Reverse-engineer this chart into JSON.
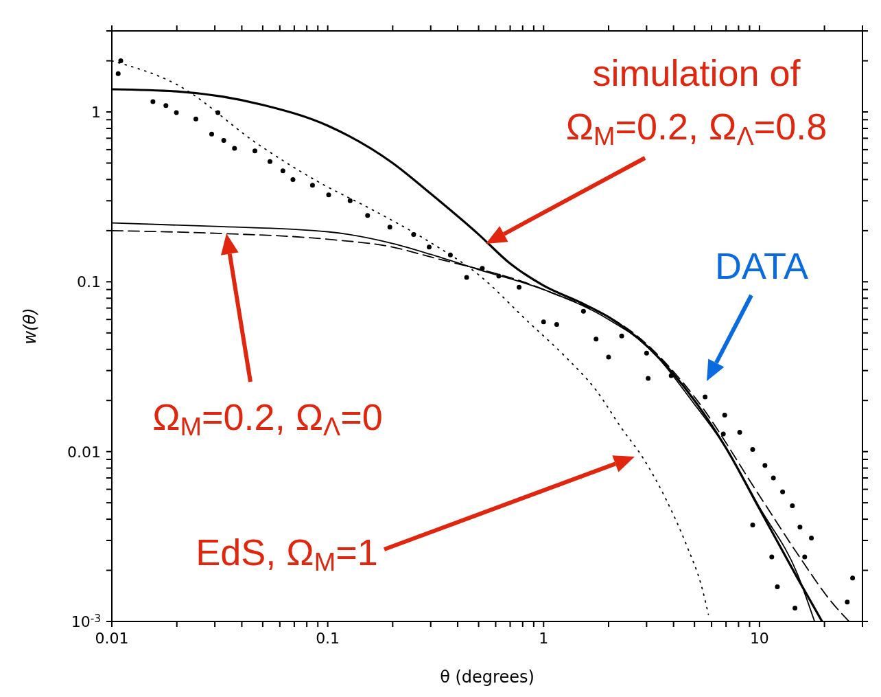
{
  "chart_data": {
    "type": "line",
    "xlabel": "θ (degrees)",
    "ylabel": "w(θ)",
    "log": "xy",
    "xlim": [
      0.01,
      30
    ],
    "ylim": [
      0.001,
      3
    ],
    "xticks": [
      {
        "value": 0.01,
        "label": "0.01"
      },
      {
        "value": 0.02,
        "label": null
      },
      {
        "value": 0.03,
        "label": null
      },
      {
        "value": 0.04,
        "label": null
      },
      {
        "value": 0.05,
        "label": null
      },
      {
        "value": 0.06,
        "label": null
      },
      {
        "value": 0.07,
        "label": null
      },
      {
        "value": 0.08,
        "label": null
      },
      {
        "value": 0.09,
        "label": null
      },
      {
        "value": 0.1,
        "label": "0.1"
      },
      {
        "value": 0.2,
        "label": null
      },
      {
        "value": 0.3,
        "label": null
      },
      {
        "value": 0.4,
        "label": null
      },
      {
        "value": 0.5,
        "label": null
      },
      {
        "value": 0.6,
        "label": null
      },
      {
        "value": 0.7,
        "label": null
      },
      {
        "value": 0.8,
        "label": null
      },
      {
        "value": 0.9,
        "label": null
      },
      {
        "value": 1,
        "label": "1"
      },
      {
        "value": 2,
        "label": null
      },
      {
        "value": 3,
        "label": null
      },
      {
        "value": 4,
        "label": null
      },
      {
        "value": 5,
        "label": null
      },
      {
        "value": 6,
        "label": null
      },
      {
        "value": 7,
        "label": null
      },
      {
        "value": 8,
        "label": null
      },
      {
        "value": 9,
        "label": null
      },
      {
        "value": 10,
        "label": "10"
      },
      {
        "value": 20,
        "label": null
      },
      {
        "value": 30,
        "label": null
      }
    ],
    "yticks": [
      {
        "value": 0.001,
        "label": "10$^{-3}$"
      },
      {
        "value": 0.002,
        "label": null
      },
      {
        "value": 0.003,
        "label": null
      },
      {
        "value": 0.004,
        "label": null
      },
      {
        "value": 0.005,
        "label": null
      },
      {
        "value": 0.006,
        "label": null
      },
      {
        "value": 0.007,
        "label": null
      },
      {
        "value": 0.008,
        "label": null
      },
      {
        "value": 0.009,
        "label": null
      },
      {
        "value": 0.01,
        "label": "0.01"
      },
      {
        "value": 0.02,
        "label": null
      },
      {
        "value": 0.03,
        "label": null
      },
      {
        "value": 0.04,
        "label": null
      },
      {
        "value": 0.05,
        "label": null
      },
      {
        "value": 0.06,
        "label": null
      },
      {
        "value": 0.07,
        "label": null
      },
      {
        "value": 0.08,
        "label": null
      },
      {
        "value": 0.09,
        "label": null
      },
      {
        "value": 0.1,
        "label": "0.1"
      },
      {
        "value": 0.2,
        "label": null
      },
      {
        "value": 0.3,
        "label": null
      },
      {
        "value": 0.4,
        "label": null
      },
      {
        "value": 0.5,
        "label": null
      },
      {
        "value": 0.6,
        "label": null
      },
      {
        "value": 0.7,
        "label": null
      },
      {
        "value": 0.8,
        "label": null
      },
      {
        "value": 0.9,
        "label": null
      },
      {
        "value": 1,
        "label": "1"
      },
      {
        "value": 2,
        "label": null
      },
      {
        "value": 3,
        "label": null
      }
    ],
    "series": [
      {
        "color": "#000000",
        "line_style": "solid",
        "marker": "none",
        "x": [
          0.01,
          0.02,
          0.05,
          0.1,
          0.2,
          0.3,
          0.5,
          0.7,
          1,
          1.5,
          2,
          3,
          5,
          7,
          10,
          15,
          19.5
        ],
        "values": [
          1.36,
          1.32,
          1.1,
          0.83,
          0.5,
          0.33,
          0.19,
          0.128,
          0.095,
          0.075,
          0.062,
          0.042,
          0.02,
          0.0105,
          0.0046,
          0.0018,
          0.001
        ]
      },
      {
        "color": "#000000",
        "line_style": "solid",
        "marker": "none",
        "x": [
          0.01,
          0.03,
          0.1,
          0.2,
          0.3,
          0.5,
          1,
          2,
          3,
          5,
          7,
          10,
          15,
          18
        ],
        "values": [
          0.222,
          0.212,
          0.197,
          0.168,
          0.145,
          0.118,
          0.09,
          0.06,
          0.042,
          0.019,
          0.0105,
          0.0047,
          0.0019,
          0.001
        ]
      },
      {
        "color": "#000000",
        "line_style": "dashed",
        "marker": "none",
        "x": [
          0.01,
          0.03,
          0.1,
          0.2,
          0.3,
          1,
          3,
          5,
          10,
          15,
          21.6,
          26
        ],
        "values": [
          0.2,
          0.193,
          0.178,
          0.16,
          0.14,
          0.09,
          0.043,
          0.021,
          0.0055,
          0.0025,
          0.0013,
          0.001
        ]
      },
      {
        "color": "#000000",
        "line_style": "dotted",
        "marker": "none",
        "x": [
          0.01,
          0.02,
          0.048,
          0.093,
          0.157,
          0.3,
          0.5,
          0.85,
          1.24,
          1.75,
          2.3,
          2.9,
          3.7,
          4.6,
          5.4,
          5.8
        ],
        "values": [
          2.0,
          1.45,
          0.64,
          0.38,
          0.27,
          0.17,
          0.11,
          0.058,
          0.037,
          0.023,
          0.0137,
          0.0091,
          0.0052,
          0.0028,
          0.0016,
          0.0011
        ]
      },
      {
        "type": "scatter",
        "color": "#000000",
        "marker": "circle",
        "x": [
          0.011,
          0.0107,
          0.0155,
          0.0178,
          0.0199,
          0.0245,
          0.031,
          0.029,
          0.033,
          0.037,
          0.046,
          0.054,
          0.062,
          0.069,
          0.085,
          0.101,
          0.127,
          0.153,
          0.194,
          0.25,
          0.295,
          0.37,
          0.44,
          0.52,
          0.62,
          0.77,
          1.0,
          1.15,
          1.53,
          1.75,
          2.0,
          2.3,
          3.0,
          3.05,
          3.9,
          5.6,
          6.9,
          6.8,
          8.1,
          9.3,
          10.6,
          11.6,
          12.8,
          9.3,
          14.2,
          15.4,
          17.4,
          11.4,
          16.2,
          12.1,
          14.6,
          27,
          25.5
        ],
        "values": [
          2.0,
          1.68,
          1.15,
          1.09,
          0.99,
          0.91,
          0.99,
          0.74,
          0.68,
          0.61,
          0.59,
          0.51,
          0.45,
          0.4,
          0.37,
          0.325,
          0.3,
          0.246,
          0.21,
          0.19,
          0.16,
          0.144,
          0.106,
          0.12,
          0.108,
          0.093,
          0.058,
          0.056,
          0.067,
          0.046,
          0.036,
          0.048,
          0.038,
          0.027,
          0.028,
          0.021,
          0.0164,
          0.0127,
          0.013,
          0.0103,
          0.0083,
          0.007,
          0.0058,
          0.0037,
          0.0048,
          0.0036,
          0.0031,
          0.0024,
          0.0024,
          0.0016,
          0.0012,
          0.0018,
          0.0013
        ]
      }
    ],
    "annotations": [
      "simulation of\nΩ$_{M}$=0.2, Ω$_{Λ}$=0.8",
      "Ω$_{M}$=0.2, Ω$_{Λ}$=0",
      "EdS, Ω$_{M}$=1",
      "DATA"
    ]
  }
}
